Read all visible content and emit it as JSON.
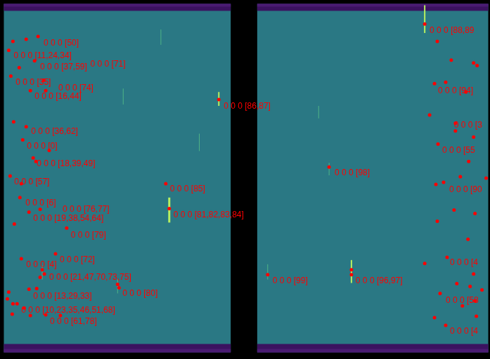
{
  "chart_data": {
    "type": "scatter",
    "x": [
      16,
      35,
      52,
      10,
      47,
      25,
      13,
      60,
      41,
      63,
      311,
      17,
      35,
      30,
      68,
      45,
      49,
      12,
      28,
      235,
      26,
      55,
      39,
      240,
      18,
      93,
      77,
      28,
      58,
      61,
      55,
      166,
      168,
      39,
      50,
      10,
      8,
      16,
      22,
      32,
      41,
      15,
      63,
      84,
      606,
      624,
      644,
      676,
      681,
      620,
      636,
      665,
      613,
      650,
      650,
      676,
      625,
      669,
      469,
      657,
      622,
      633,
      694,
      648,
      678,
      624,
      668,
      638,
      606,
      676,
      652,
      671,
      628,
      688,
      678,
      660,
      620,
      636,
      680,
      381,
      501,
      501
    ],
    "values": [
      57,
      54,
      50,
      70,
      85,
      95,
      107,
      113,
      128,
      128,
      141,
      173,
      180,
      199,
      214,
      225,
      230,
      251,
      262,
      262,
      282,
      299,
      303,
      298,
      320,
      326,
      363,
      370,
      386,
      392,
      397,
      407,
      412,
      414,
      413,
      418,
      428,
      435,
      435,
      441,
      452,
      450,
      451,
      452,
      32,
      57,
      84,
      88,
      92,
      118,
      116,
      130,
      163,
      175,
      186,
      195,
      205,
      230,
      238,
      252,
      263,
      260,
      254,
      300,
      305,
      316,
      342,
      368,
      377,
      392,
      406,
      410,
      420,
      415,
      431,
      438,
      455,
      466,
      453,
      393,
      386,
      393
    ],
    "color": "#ff0000",
    "marker": "circle",
    "annotations": [
      {
        "text": "0 0 0 [50]",
        "x": 60,
        "y": 60
      },
      {
        "text": "0 0 0 [11,24,34]",
        "x": 17,
        "y": 78
      },
      {
        "text": "0 0 0 [37,59]",
        "x": 55,
        "y": 94
      },
      {
        "text": "0 0 0 [71]",
        "x": 127,
        "y": 90
      },
      {
        "text": "0 0 0 [35]",
        "x": 20,
        "y": 116
      },
      {
        "text": "0 0 0 [74]",
        "x": 81,
        "y": 124
      },
      {
        "text": "0 0 0 [16,44]",
        "x": 47,
        "y": 137
      },
      {
        "text": "0 0 0 [86,87]",
        "x": 318,
        "y": 151
      },
      {
        "text": "0 0 0 [36,62]",
        "x": 42,
        "y": 187
      },
      {
        "text": "0 0 0 [0]",
        "x": 36,
        "y": 208
      },
      {
        "text": "0 0 0 [18,39,49]",
        "x": 50,
        "y": 233
      },
      {
        "text": "0 0 0 [57]",
        "x": 18,
        "y": 260
      },
      {
        "text": "0 0 0 [85]",
        "x": 241,
        "y": 270
      },
      {
        "text": "0 0 0 [6]",
        "x": 34,
        "y": 290
      },
      {
        "text": "0 0 0 [76,77]",
        "x": 87,
        "y": 299
      },
      {
        "text": "0 0 0 [81,82,83,84]",
        "x": 246,
        "y": 307
      },
      {
        "text": "0 0 0 [19,38,54,64]",
        "x": 45,
        "y": 312
      },
      {
        "text": "0 0 0 [79]",
        "x": 99,
        "y": 336
      },
      {
        "text": "0 0 0 [72]",
        "x": 83,
        "y": 372
      },
      {
        "text": "0 0 0 [4]",
        "x": 35,
        "y": 379
      },
      {
        "text": "0 0 0 [21,47,70,73,75]",
        "x": 68,
        "y": 397
      },
      {
        "text": "0 0 0 [80]",
        "x": 173,
        "y": 420
      },
      {
        "text": "0 0 0 [13,29,33]",
        "x": 45,
        "y": 424
      },
      {
        "text": "0 0 0 [10,23,35,46,51,68]",
        "x": 28,
        "y": 445
      },
      {
        "text": "0 0 0 [61,78]",
        "x": 69,
        "y": 461
      },
      {
        "text": "0 0 0 [88,89",
        "x": 613,
        "y": 42
      },
      {
        "text": "0 0 0 [94]",
        "x": 625,
        "y": 128
      },
      {
        "text": "0 0 0 [3",
        "x": 648,
        "y": 178
      },
      {
        "text": "0 0 0 [55",
        "x": 631,
        "y": 214
      },
      {
        "text": "0 0 0 [98]",
        "x": 477,
        "y": 247
      },
      {
        "text": "0 0 0 [90",
        "x": 641,
        "y": 271
      },
      {
        "text": "0 0 0 [4",
        "x": 642,
        "y": 376
      },
      {
        "text": "0 0 0 [99]",
        "x": 388,
        "y": 402
      },
      {
        "text": "0 0 0 [96,97]",
        "x": 507,
        "y": 402
      },
      {
        "text": "0 0 0 [58",
        "x": 636,
        "y": 430
      },
      {
        "text": "0 0 0 [4",
        "x": 642,
        "y": 475
      }
    ],
    "xlim": [
      0,
      697
    ],
    "ylim": [
      512,
      0
    ],
    "grid": false,
    "tick_labels": false
  }
}
